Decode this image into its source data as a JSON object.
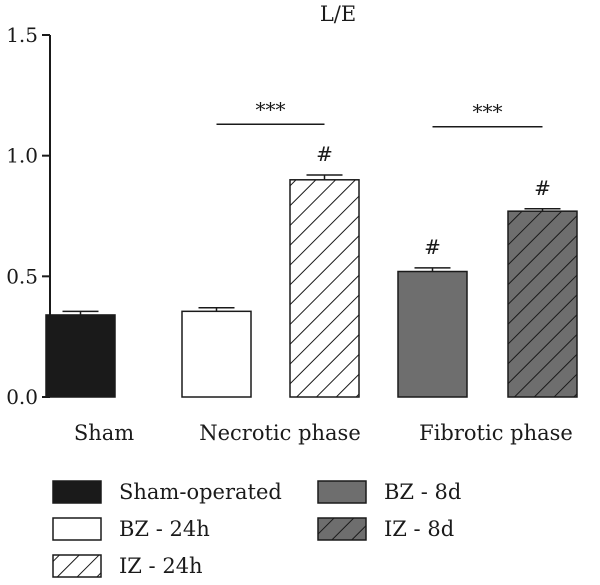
{
  "chart_data": {
    "type": "bar",
    "title": "L/E",
    "xlabel": "",
    "ylabel": "",
    "ylim": [
      0,
      1.5
    ],
    "yticks": [
      "0.0",
      "0.5",
      "1.0",
      "1.5"
    ],
    "grid": false,
    "legend_position": "bottom",
    "groups": [
      {
        "label": "Sham",
        "series": [
          "Sham-operated"
        ]
      },
      {
        "label": "Necrotic phase",
        "series": [
          "BZ - 24h",
          "IZ - 24h"
        ]
      },
      {
        "label": "Fibrotic phase",
        "series": [
          "BZ - 8d",
          "IZ - 8d"
        ]
      }
    ],
    "series": [
      {
        "name": "Sham-operated",
        "value": 0.34,
        "error": 0.015,
        "fill": "#1a1a1a",
        "pattern": "solid",
        "annotation": ""
      },
      {
        "name": "BZ - 24h",
        "value": 0.355,
        "error": 0.015,
        "fill": "#ffffff",
        "pattern": "solid",
        "annotation": ""
      },
      {
        "name": "IZ - 24h",
        "value": 0.9,
        "error": 0.02,
        "fill": "#ffffff",
        "pattern": "hatch",
        "annotation": "#"
      },
      {
        "name": "BZ - 8d",
        "value": 0.52,
        "error": 0.015,
        "fill": "#6e6e6e",
        "pattern": "solid",
        "annotation": "#"
      },
      {
        "name": "IZ - 8d",
        "value": 0.77,
        "error": 0.01,
        "fill": "#6e6e6e",
        "pattern": "hatch",
        "annotation": "#"
      }
    ],
    "significance": [
      {
        "label": "***",
        "from": "BZ - 24h",
        "to": "IZ - 24h",
        "y": 1.13
      },
      {
        "label": "***",
        "from": "BZ - 8d",
        "to": "IZ - 8d",
        "y": 1.12
      }
    ]
  }
}
